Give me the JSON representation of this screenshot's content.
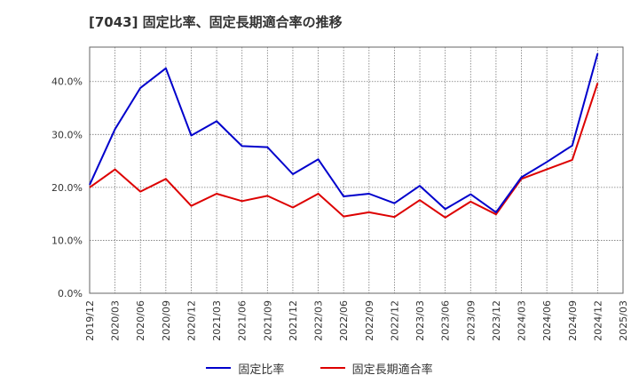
{
  "title": "[7043]  固定比率、固定長期適合率の推移",
  "chart_data": {
    "type": "line",
    "title": "[7043]  固定比率、固定長期適合率の推移",
    "categories": [
      "2019/12",
      "2020/03",
      "2020/06",
      "2020/09",
      "2020/12",
      "2021/03",
      "2021/06",
      "2021/09",
      "2021/12",
      "2022/03",
      "2022/06",
      "2022/09",
      "2022/12",
      "2023/03",
      "2023/06",
      "2023/09",
      "2023/12",
      "2024/03",
      "2024/06",
      "2024/09",
      "2024/12",
      "2025/03"
    ],
    "yticks": [
      "0.0%",
      "10.0%",
      "20.0%",
      "30.0%",
      "40.0%"
    ],
    "ylim": [
      0,
      46.5
    ],
    "grid": true,
    "series": [
      {
        "name": "固定比率",
        "color": "#0000cc",
        "values": [
          20.5,
          31.0,
          38.8,
          42.5,
          29.8,
          32.5,
          27.8,
          27.6,
          22.5,
          25.3,
          18.3,
          18.8,
          17.0,
          20.3,
          15.9,
          18.7,
          15.3,
          21.9,
          24.8,
          27.9,
          45.3,
          null
        ]
      },
      {
        "name": "固定長期適合率",
        "color": "#dd0000",
        "values": [
          20.0,
          23.4,
          19.2,
          21.6,
          16.5,
          18.8,
          17.4,
          18.4,
          16.2,
          18.8,
          14.5,
          15.3,
          14.4,
          17.6,
          14.3,
          17.3,
          14.9,
          21.6,
          23.4,
          25.2,
          39.7,
          null
        ]
      }
    ]
  }
}
